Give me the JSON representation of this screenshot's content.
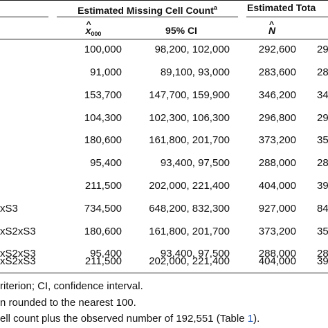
{
  "header": {
    "group1_title": "Estimated Missing Cell Count",
    "group1_sup": "a",
    "group2_title": "Estimated Tota",
    "col_x_sym": "x",
    "col_x_sub": "000",
    "col_ci": "95% CI",
    "col_n_sym": "N"
  },
  "rows": [
    {
      "label": "",
      "x000": "100,000",
      "ci": "98,200, 102,000",
      "n": "292,600",
      "n_ci_partial": "29"
    },
    {
      "label": "",
      "x000": "91,000",
      "ci": "89,100, 93,000",
      "n": "283,600",
      "n_ci_partial": "28"
    },
    {
      "label": "",
      "x000": "153,700",
      "ci": "147,700, 159,900",
      "n": "346,200",
      "n_ci_partial": "34"
    },
    {
      "label": "",
      "x000": "104,300",
      "ci": "102,300, 106,300",
      "n": "296,800",
      "n_ci_partial": "29"
    },
    {
      "label": "",
      "x000": "180,600",
      "ci": "161,800, 201,700",
      "n": "373,200",
      "n_ci_partial": "35"
    },
    {
      "label": "",
      "x000": "95,400",
      "ci": "93,400, 97,500",
      "n": "288,000",
      "n_ci_partial": "28"
    },
    {
      "label": "",
      "x000": "211,500",
      "ci": "202,000, 221,400",
      "n": "404,000",
      "n_ci_partial": "39"
    },
    {
      "label": "xS3",
      "x000": "734,500",
      "ci": "648,200, 832,300",
      "n": "927,000",
      "n_ci_partial": "84"
    },
    {
      "label": "xS2xS3",
      "x000": "180,600",
      "ci": "161,800, 201,700",
      "n": "373,200",
      "n_ci_partial": "35"
    },
    {
      "label": "xS2xS3",
      "x000": "95,400",
      "ci": "93,400, 97,500",
      "n": "288,000",
      "n_ci_partial": "28"
    },
    {
      "label": "xS2xS3",
      "x000": "211,500",
      "ci": "202,000, 221,400",
      "n": "404,000",
      "n_ci_partial": "39"
    }
  ],
  "footnotes": {
    "line1": "riterion; CI, confidence interval.",
    "line2": "n rounded to the nearest 100.",
    "line3_pre": "ell count plus the observed number of 192,551 (Table ",
    "line3_link": "1",
    "line3_post": ")."
  }
}
